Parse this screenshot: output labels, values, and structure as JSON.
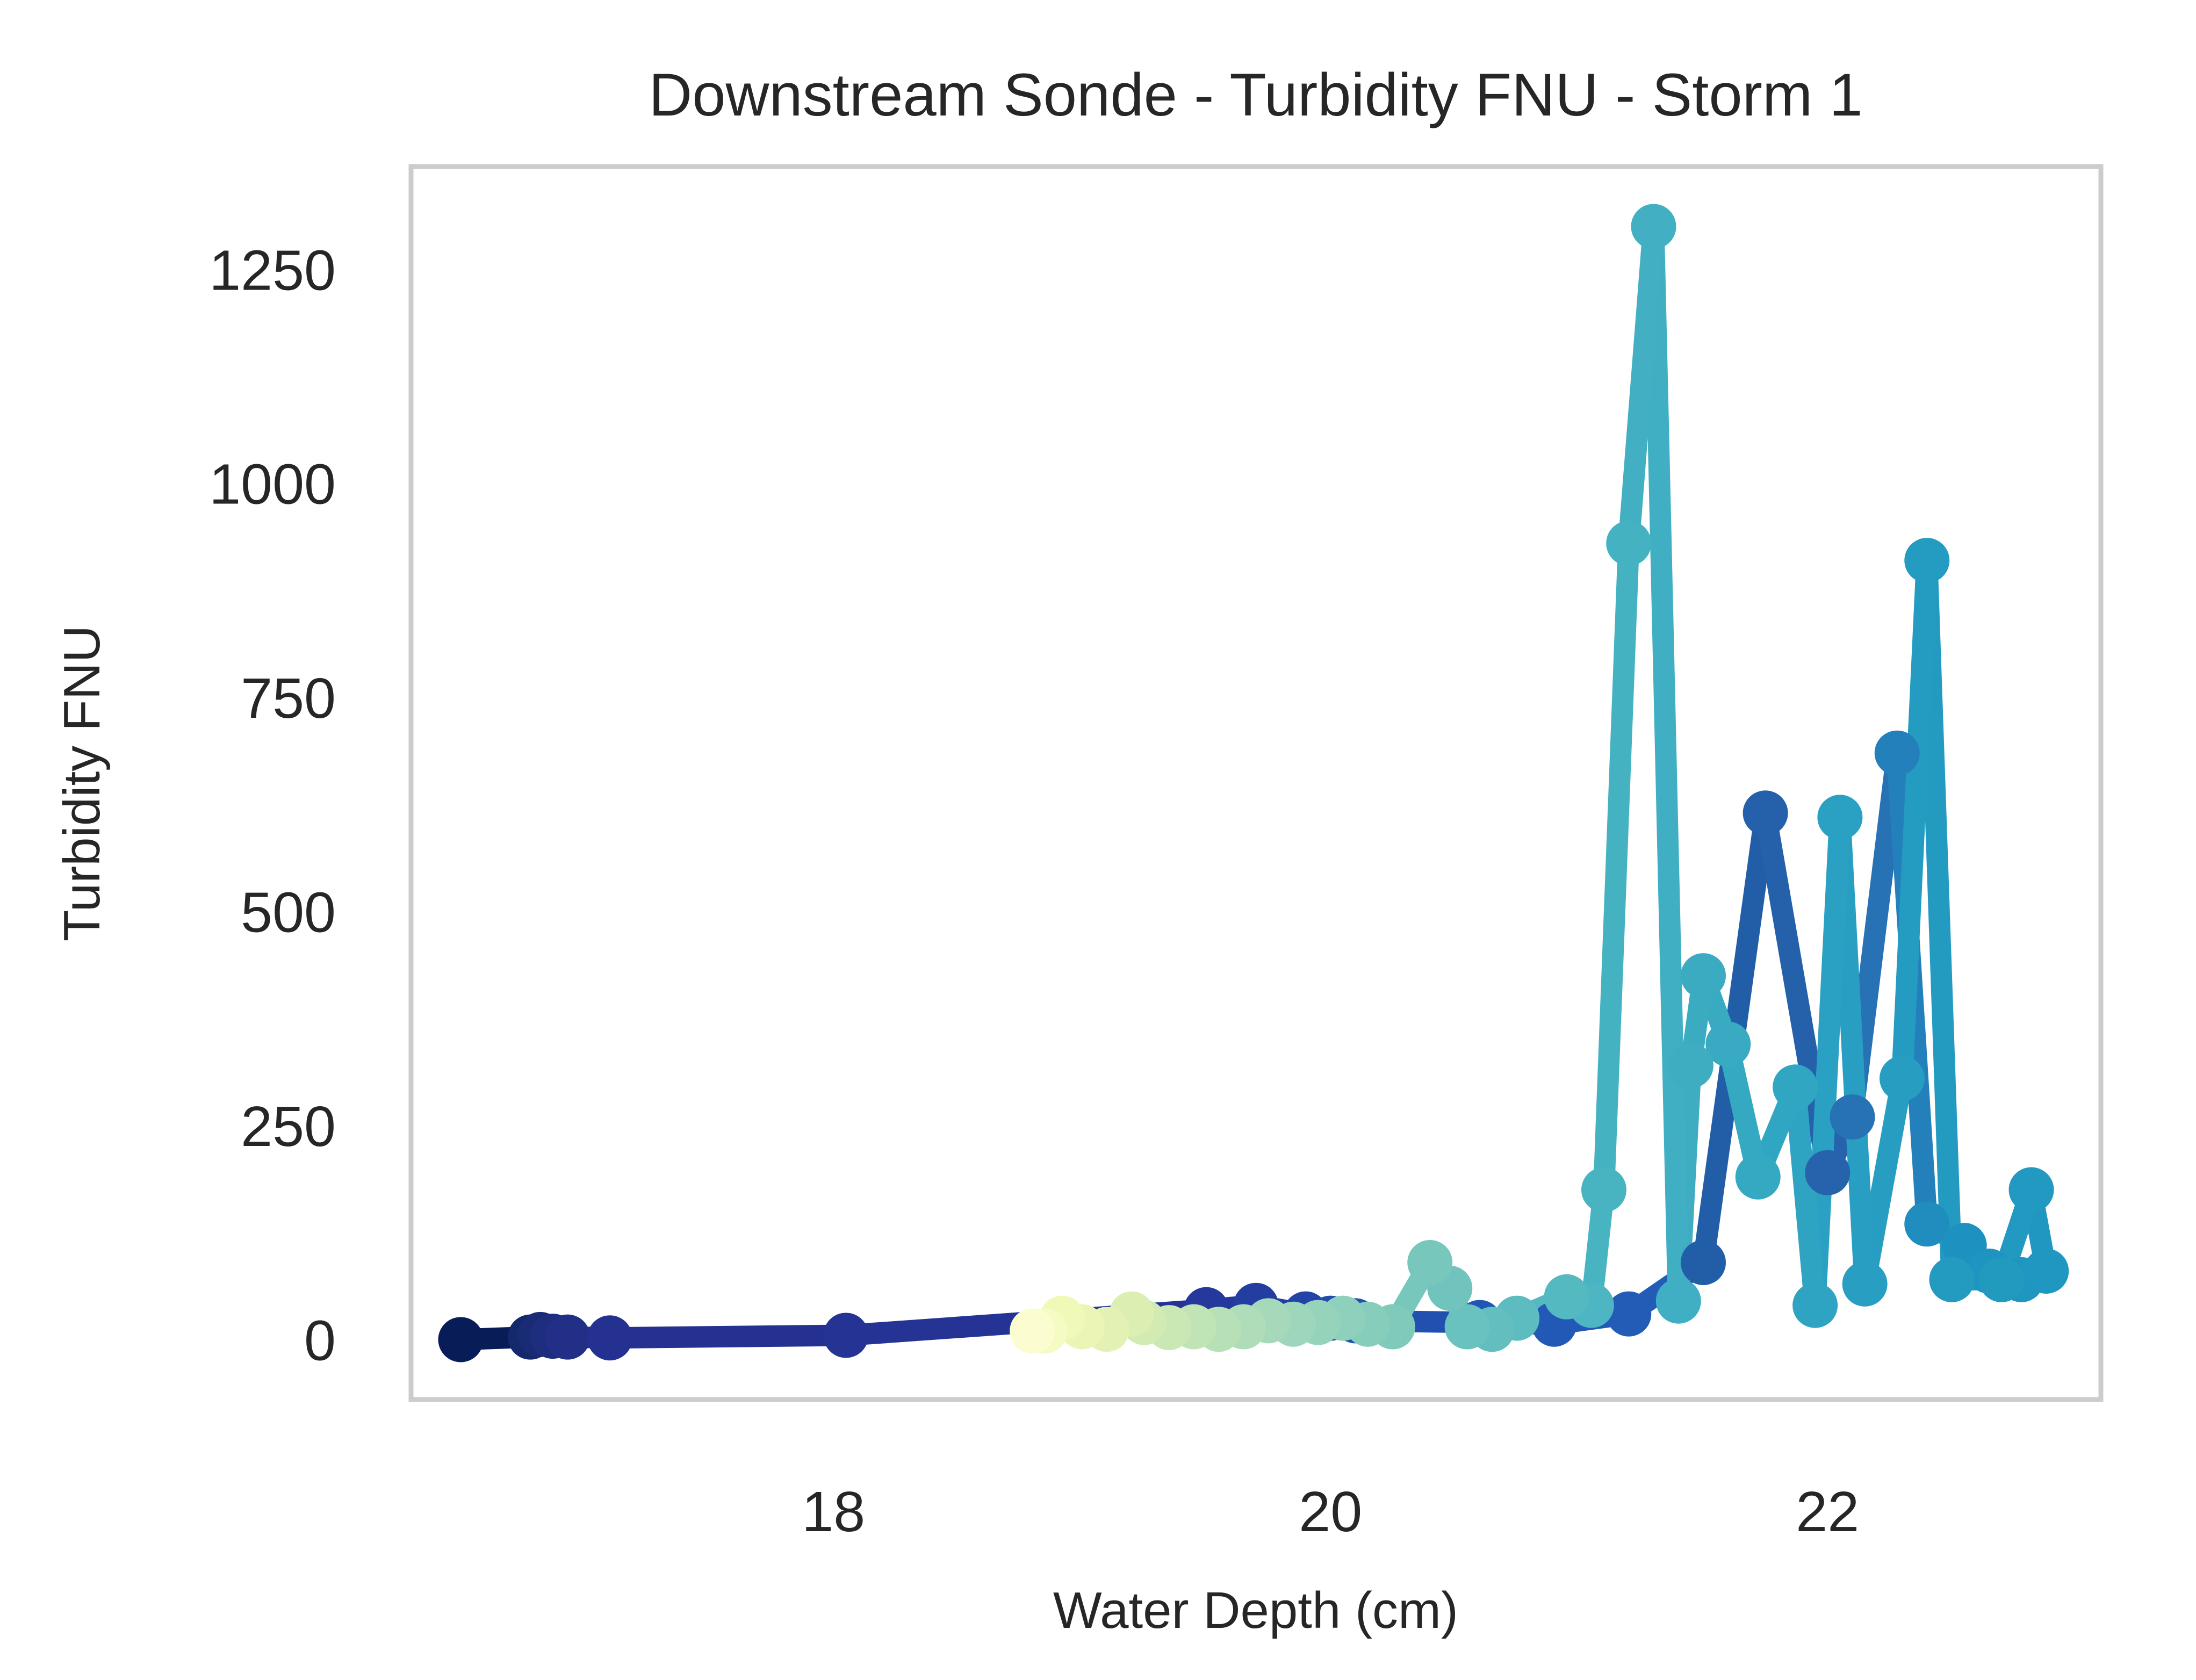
{
  "chart_data": {
    "type": "line",
    "title": "Downstream Sonde - Turbidity FNU - Storm 1",
    "xlabel": "Water Depth (cm)",
    "ylabel": "Turbidity FNU",
    "xlim": [
      16.3,
      23.1
    ],
    "ylim": [
      -70,
      1370
    ],
    "xticks": [
      18,
      20,
      22
    ],
    "yticks": [
      0,
      250,
      500,
      750,
      1000,
      1250
    ],
    "grid": false,
    "legend": "none",
    "colormap": "YlGnBu",
    "marker": "circle",
    "series": [
      {
        "points": [
          {
            "x": 16.5,
            "y": 0,
            "c": "#081d58"
          },
          {
            "x": 16.78,
            "y": 3,
            "c": "#14286c"
          },
          {
            "x": 16.82,
            "y": 6,
            "c": "#1a2b75"
          },
          {
            "x": 16.87,
            "y": 4,
            "c": "#1e2d7e"
          },
          {
            "x": 16.93,
            "y": 3,
            "c": "#222f86"
          },
          {
            "x": 17.1,
            "y": 2,
            "c": "#243190"
          },
          {
            "x": 18.05,
            "y": 5,
            "c": "#253494"
          },
          {
            "x": 19.5,
            "y": 35,
            "c": "#24399b"
          },
          {
            "x": 19.7,
            "y": 40,
            "c": "#233ea0"
          },
          {
            "x": 19.9,
            "y": 30,
            "c": "#2344a6"
          },
          {
            "x": 20.0,
            "y": 25,
            "c": "#224aab"
          },
          {
            "x": 20.1,
            "y": 22,
            "c": "#2150b0"
          },
          {
            "x": 20.6,
            "y": 20,
            "c": "#2156b4"
          },
          {
            "x": 20.9,
            "y": 18,
            "c": "#2259b6"
          },
          {
            "x": 21.2,
            "y": 30,
            "c": "#225cb7"
          },
          {
            "x": 21.5,
            "y": 90,
            "c": "#225ea8"
          },
          {
            "x": 21.75,
            "y": 615,
            "c": "#2560aa"
          },
          {
            "x": 22.0,
            "y": 195,
            "c": "#2763ad"
          },
          {
            "x": 22.1,
            "y": 260,
            "c": "#2772b5"
          },
          {
            "x": 22.28,
            "y": 685,
            "c": "#2380ba"
          },
          {
            "x": 22.4,
            "y": 135,
            "c": "#1f8dbe"
          },
          {
            "x": 22.55,
            "y": 110,
            "c": "#1d91c0"
          },
          {
            "x": 22.65,
            "y": 80,
            "c": "#1e94c0"
          },
          {
            "x": 22.78,
            "y": 70,
            "c": "#1f96c0"
          },
          {
            "x": 22.88,
            "y": 80,
            "c": "#2097c0"
          },
          {
            "x": 22.82,
            "y": 175,
            "c": "#2199c0"
          },
          {
            "x": 22.7,
            "y": 70,
            "c": "#229ac0"
          },
          {
            "x": 22.5,
            "y": 70,
            "c": "#239bc1"
          },
          {
            "x": 22.4,
            "y": 910,
            "c": "#249cc1"
          },
          {
            "x": 22.3,
            "y": 305,
            "c": "#269dc1"
          },
          {
            "x": 22.15,
            "y": 65,
            "c": "#289fc2"
          },
          {
            "x": 22.05,
            "y": 610,
            "c": "#2aa1c2"
          },
          {
            "x": 21.95,
            "y": 40,
            "c": "#2ea4c2"
          },
          {
            "x": 21.87,
            "y": 295,
            "c": "#31a6c2"
          },
          {
            "x": 21.72,
            "y": 190,
            "c": "#35a8c2"
          },
          {
            "x": 21.6,
            "y": 345,
            "c": "#38aac2"
          },
          {
            "x": 21.5,
            "y": 425,
            "c": "#3babc2"
          },
          {
            "x": 21.45,
            "y": 320,
            "c": "#3eadc2"
          },
          {
            "x": 21.4,
            "y": 45,
            "c": "#40aec3"
          },
          {
            "x": 21.3,
            "y": 1300,
            "c": "#42b0c2"
          },
          {
            "x": 21.2,
            "y": 930,
            "c": "#45b2c2"
          },
          {
            "x": 21.1,
            "y": 175,
            "c": "#48b4c2"
          },
          {
            "x": 21.05,
            "y": 40,
            "c": "#4db6c2"
          },
          {
            "x": 20.95,
            "y": 50,
            "c": "#54b9c1"
          },
          {
            "x": 20.75,
            "y": 25,
            "c": "#5cbcc0"
          },
          {
            "x": 20.65,
            "y": 12,
            "c": "#63bfbf"
          },
          {
            "x": 20.55,
            "y": 15,
            "c": "#6ac2be"
          },
          {
            "x": 20.48,
            "y": 60,
            "c": "#70c4bd"
          },
          {
            "x": 20.4,
            "y": 90,
            "c": "#77c7bc"
          },
          {
            "x": 20.25,
            "y": 15,
            "c": "#7fcabb"
          },
          {
            "x": 20.15,
            "y": 18,
            "c": "#86cdbb"
          },
          {
            "x": 20.05,
            "y": 25,
            "c": "#8ed0bb"
          },
          {
            "x": 19.95,
            "y": 20,
            "c": "#96d3bb"
          },
          {
            "x": 19.85,
            "y": 18,
            "c": "#9ed6bb"
          },
          {
            "x": 19.75,
            "y": 22,
            "c": "#a6d9ba"
          },
          {
            "x": 19.65,
            "y": 15,
            "c": "#afdcb9"
          },
          {
            "x": 19.55,
            "y": 12,
            "c": "#b7e0b7"
          },
          {
            "x": 19.45,
            "y": 15,
            "c": "#c0e4b6"
          },
          {
            "x": 19.35,
            "y": 14,
            "c": "#c9e8b4"
          },
          {
            "x": 19.25,
            "y": 20,
            "c": "#d1ebb2"
          },
          {
            "x": 19.2,
            "y": 30,
            "c": "#dbefb3"
          },
          {
            "x": 19.1,
            "y": 12,
            "c": "#e3f2b4"
          },
          {
            "x": 19.0,
            "y": 15,
            "c": "#ebf6b6"
          },
          {
            "x": 18.92,
            "y": 25,
            "c": "#f1f9b9"
          },
          {
            "x": 18.85,
            "y": 10,
            "c": "#f6fbc4"
          },
          {
            "x": 18.8,
            "y": 10,
            "c": "#fbfdd0"
          }
        ]
      }
    ]
  }
}
